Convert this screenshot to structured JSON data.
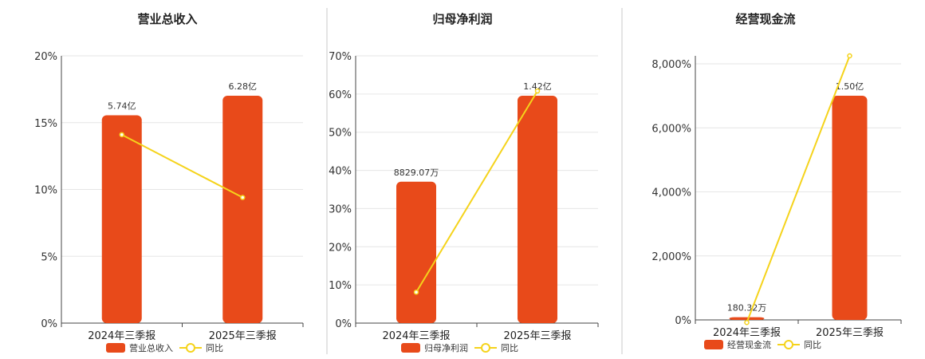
{
  "chart_data": [
    {
      "type": "bar",
      "title": "营业总收入",
      "categories": [
        "2024年三季报",
        "2025年三季报"
      ],
      "series": [
        {
          "name": "营业总收入",
          "type": "bar",
          "axis": "amount",
          "values": [
            5.74,
            6.28
          ],
          "labels": [
            "5.74亿",
            "6.28亿"
          ]
        },
        {
          "name": "同比",
          "type": "line",
          "axis": "percent",
          "values": [
            14.1,
            9.4
          ]
        }
      ],
      "y_ticks": [
        "0%",
        "5%",
        "10%",
        "15%",
        "20%"
      ],
      "ylim": [
        0,
        20
      ],
      "grid": true,
      "legend": "bottom",
      "colors": {
        "bar": "#E84A1A",
        "line": "#F5D31B"
      }
    },
    {
      "type": "bar",
      "title": "归母净利润",
      "categories": [
        "2024年三季报",
        "2025年三季报"
      ],
      "series": [
        {
          "name": "归母净利润",
          "type": "bar",
          "axis": "amount",
          "values": [
            0.8829,
            1.42
          ],
          "labels": [
            "8829.07万",
            "1.42亿"
          ]
        },
        {
          "name": "同比",
          "type": "line",
          "axis": "percent",
          "values": [
            8.1,
            60.8
          ]
        }
      ],
      "y_ticks": [
        "0%",
        "10%",
        "20%",
        "30%",
        "40%",
        "50%",
        "60%",
        "70%"
      ],
      "ylim": [
        0,
        70
      ],
      "grid": true,
      "legend": "bottom",
      "colors": {
        "bar": "#E84A1A",
        "line": "#F5D31B"
      }
    },
    {
      "type": "bar",
      "title": "经营现金流",
      "categories": [
        "2024年三季报",
        "2025年三季报"
      ],
      "series": [
        {
          "name": "经营现金流",
          "type": "bar",
          "axis": "amount",
          "values": [
            0.018032,
            1.5
          ],
          "labels": [
            "180.32万",
            "1.50亿"
          ]
        },
        {
          "name": "同比",
          "type": "line",
          "axis": "percent",
          "values": [
            -80,
            8250
          ]
        }
      ],
      "y_ticks": [
        "0%",
        "2,000%",
        "4,000%",
        "6,000%",
        "8,000%"
      ],
      "ylim": [
        0,
        8250
      ],
      "grid": true,
      "legend": "bottom",
      "colors": {
        "bar": "#E84A1A",
        "line": "#F5D31B"
      }
    }
  ]
}
